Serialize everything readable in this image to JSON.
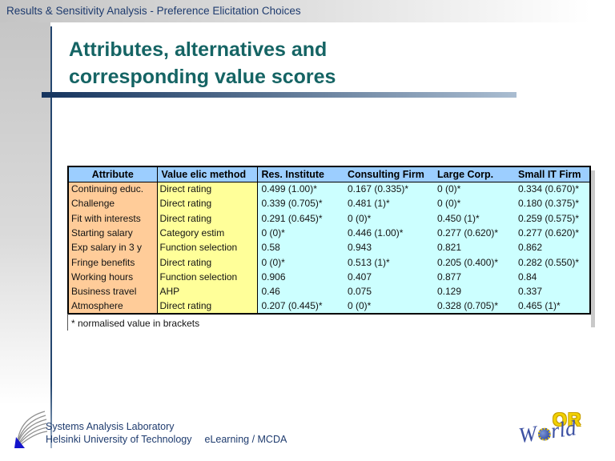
{
  "slide": {
    "header": "Results & Sensitivity Analysis - Preference Elicitation Choices",
    "title": "Attributes, alternatives and corresponding value scores"
  },
  "table": {
    "columns": [
      "Attribute",
      "Value elic method",
      "Res. Institute",
      "Consulting Firm",
      "Large Corp.",
      "Small IT Firm"
    ],
    "rows": [
      [
        "Continuing educ.",
        "Direct rating",
        "0.499 (1.00)*",
        "0.167 (0.335)*",
        "0 (0)*",
        "0.334 (0.670)*"
      ],
      [
        "Challenge",
        "Direct rating",
        "0.339 (0.705)*",
        "0.481 (1)*",
        "0 (0)*",
        "0.180 (0.375)*"
      ],
      [
        "Fit with interests",
        "Direct rating",
        "0.291 (0.645)*",
        "0 (0)*",
        "0.450 (1)*",
        "0.259 (0.575)*"
      ],
      [
        "Starting salary",
        "Category estim",
        "0 (0)*",
        "0.446 (1.00)*",
        "0.277 (0.620)*",
        "0.277 (0.620)*"
      ],
      [
        "Exp salary in 3 y",
        "Function selection",
        "0.58",
        "0.943",
        "0.821",
        "0.862"
      ],
      [
        "Fringe benefits",
        "Direct rating",
        "0 (0)*",
        "0.513 (1)*",
        "0.205 (0.400)*",
        "0.282 (0.550)*"
      ],
      [
        "Working hours",
        "Function selection",
        "0.906",
        "0.407",
        "0.877",
        "0.84"
      ],
      [
        "Business travel",
        "AHP",
        "0.46",
        "0.075",
        "0.129",
        "0.337"
      ],
      [
        "Atmosphere",
        "Direct rating",
        "0.207 (0.445)*",
        "0 (0)*",
        "0.328 (0.705)*",
        "0.465 (1)*"
      ]
    ],
    "note": "* normalised value in brackets",
    "colors": {
      "header_bg": "#9cceff",
      "attribute_bg": "#ffcc99",
      "method_bg": "#ffff99",
      "values_bg": "#ccffff"
    }
  },
  "footer": {
    "org_line1": "Systems Analysis Laboratory",
    "org_line2": "Helsinki University of Technology",
    "course": "eLearning / MCDA"
  },
  "orworld_logo": {
    "top_text": "OR",
    "w_text": "W",
    "rld_text": "rld"
  },
  "theme_colors": {
    "title_teal": "#156464",
    "header_navy": "#1e3b6e",
    "divider_start": "#15345e",
    "divider_end": "#aabdd1"
  }
}
